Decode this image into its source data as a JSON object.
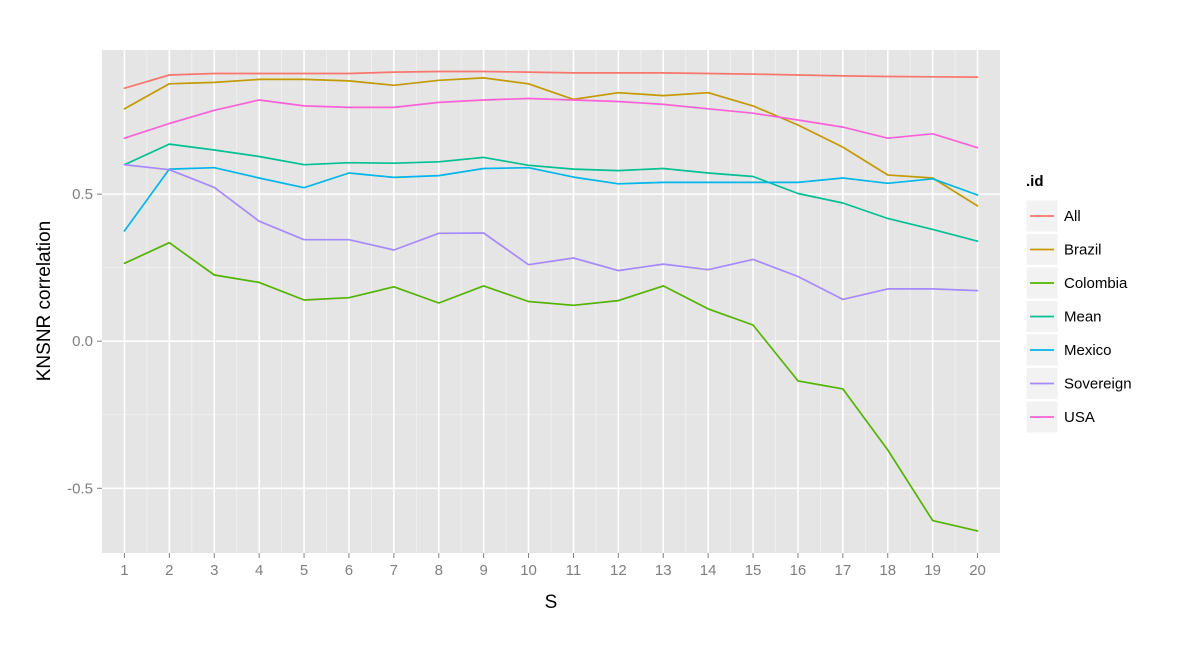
{
  "chart_data": {
    "type": "line",
    "xlabel": "S",
    "ylabel": "KNSNR correlation",
    "x": [
      1,
      2,
      3,
      4,
      5,
      6,
      7,
      8,
      9,
      10,
      11,
      12,
      13,
      14,
      15,
      16,
      17,
      18,
      19,
      20
    ],
    "xlim": [
      0.5,
      20.5
    ],
    "ylim": [
      -0.72,
      0.99
    ],
    "y_ticks": [
      -0.5,
      0.0,
      0.5
    ],
    "y_tick_labels": [
      "-0.5",
      "0.0",
      "0.5"
    ],
    "x_tick_labels": [
      "1",
      "2",
      "3",
      "4",
      "5",
      "6",
      "7",
      "8",
      "9",
      "10",
      "11",
      "12",
      "13",
      "14",
      "15",
      "16",
      "17",
      "18",
      "19",
      "20"
    ],
    "grid": true,
    "legend": {
      "title": ".id",
      "position": "right"
    },
    "series": [
      {
        "name": "All",
        "color": "#F8766D",
        "values": [
          0.86,
          0.905,
          0.91,
          0.91,
          0.91,
          0.91,
          0.915,
          0.917,
          0.917,
          0.915,
          0.912,
          0.912,
          0.912,
          0.91,
          0.908,
          0.905,
          0.902,
          0.9,
          0.899,
          0.898
        ]
      },
      {
        "name": "Brazil",
        "color": "#C49A00",
        "values": [
          0.79,
          0.875,
          0.88,
          0.89,
          0.89,
          0.885,
          0.87,
          0.887,
          0.895,
          0.875,
          0.822,
          0.845,
          0.835,
          0.845,
          0.8,
          0.735,
          0.66,
          0.565,
          0.555,
          0.46
        ]
      },
      {
        "name": "Colombia",
        "color": "#53B400",
        "values": [
          0.265,
          0.335,
          0.225,
          0.2,
          0.14,
          0.148,
          0.185,
          0.13,
          0.188,
          0.135,
          0.122,
          0.138,
          0.188,
          0.11,
          0.055,
          -0.135,
          -0.162,
          -0.37,
          -0.61,
          -0.645
        ]
      },
      {
        "name": "Mean",
        "color": "#00C094",
        "values": [
          0.6,
          0.67,
          0.65,
          0.628,
          0.6,
          0.607,
          0.605,
          0.61,
          0.625,
          0.598,
          0.585,
          0.58,
          0.587,
          0.572,
          0.56,
          0.502,
          0.47,
          0.417,
          0.38,
          0.34
        ]
      },
      {
        "name": "Mexico",
        "color": "#00B6EB",
        "values": [
          0.375,
          0.585,
          0.59,
          0.555,
          0.522,
          0.572,
          0.557,
          0.563,
          0.587,
          0.59,
          0.558,
          0.535,
          0.54,
          0.54,
          0.54,
          0.54,
          0.555,
          0.537,
          0.552,
          0.497
        ]
      },
      {
        "name": "Sovereign",
        "color": "#A58AFF",
        "values": [
          0.6,
          0.583,
          0.523,
          0.408,
          0.345,
          0.345,
          0.31,
          0.367,
          0.368,
          0.26,
          0.283,
          0.24,
          0.262,
          0.243,
          0.278,
          0.22,
          0.142,
          0.178,
          0.178,
          0.172
        ]
      },
      {
        "name": "USA",
        "color": "#FB61D7",
        "values": [
          0.69,
          0.74,
          0.785,
          0.82,
          0.8,
          0.795,
          0.795,
          0.812,
          0.82,
          0.825,
          0.82,
          0.815,
          0.805,
          0.79,
          0.775,
          0.752,
          0.728,
          0.69,
          0.705,
          0.658
        ]
      }
    ]
  }
}
